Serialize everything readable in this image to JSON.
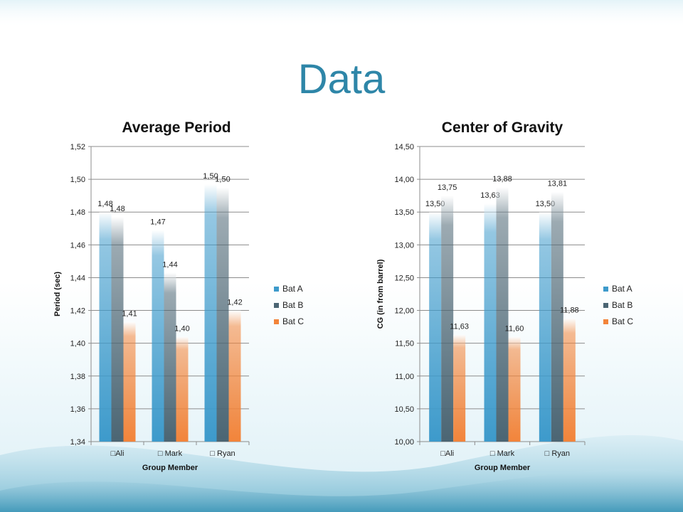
{
  "slide": {
    "title": "Data"
  },
  "colors": {
    "bat_a": "#3d9acb",
    "bat_b": "#4b6573",
    "bat_c": "#f2843a",
    "title": "#2e86a8"
  },
  "chart_data": [
    {
      "type": "bar",
      "title": "Average Period",
      "xlabel": "Group Member",
      "ylabel": "Period (sec)",
      "categories": [
        "Ali",
        "Mark",
        "Ryan"
      ],
      "category_labels": [
        "□Ali",
        "□ Mark",
        "□ Ryan"
      ],
      "ylim": [
        1.34,
        1.52
      ],
      "ytick_step": 0.02,
      "ytick_labels": [
        "1,34",
        "1,36",
        "1,38",
        "1,40",
        "1,42",
        "1,44",
        "1,46",
        "1,48",
        "1,50",
        "1,52"
      ],
      "legend_position": "right",
      "grid": true,
      "series": [
        {
          "name": "Bat A",
          "values": [
            1.48,
            1.469,
            1.497
          ],
          "labels": [
            "1,48",
            "1,47",
            "1,50"
          ]
        },
        {
          "name": "Bat B",
          "values": [
            1.477,
            1.443,
            1.495
          ],
          "labels": [
            "1,48",
            "1,44",
            "1,50"
          ]
        },
        {
          "name": "Bat C",
          "values": [
            1.413,
            1.404,
            1.42
          ],
          "labels": [
            "1,41",
            "1,40",
            "1,42"
          ]
        }
      ]
    },
    {
      "type": "bar",
      "title": "Center of Gravity",
      "xlabel": "Group Member",
      "ylabel": "CG (in from barrel)",
      "categories": [
        "Ali",
        "Mark",
        "Ryan"
      ],
      "category_labels": [
        "□Ali",
        "□ Mark",
        "□ Ryan"
      ],
      "ylim": [
        10.0,
        14.5
      ],
      "ytick_step": 0.5,
      "ytick_labels": [
        "10,00",
        "10,50",
        "11,00",
        "11,50",
        "12,00",
        "12,50",
        "13,00",
        "13,50",
        "14,00",
        "14,50"
      ],
      "legend_position": "right",
      "grid": true,
      "series": [
        {
          "name": "Bat A",
          "values": [
            13.5,
            13.63,
            13.5
          ],
          "labels": [
            "13,50",
            "13,63",
            "13,50"
          ]
        },
        {
          "name": "Bat B",
          "values": [
            13.75,
            13.88,
            13.81
          ],
          "labels": [
            "13,75",
            "13,88",
            "13,81"
          ]
        },
        {
          "name": "Bat C",
          "values": [
            11.63,
            11.6,
            11.88
          ],
          "labels": [
            "11,63",
            "11,60",
            "11,88"
          ]
        }
      ]
    }
  ]
}
